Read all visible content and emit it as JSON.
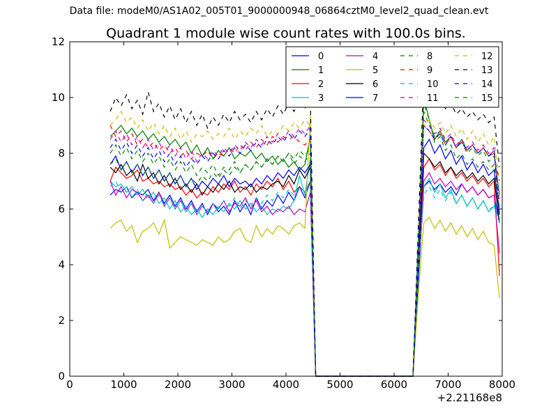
{
  "supertitle": "Data file: modeM0/AS1A02_005T01_9000000948_06864cztM0_level2_quad_clean.evt",
  "chart_data": {
    "type": "line",
    "title": "Quadrant 1 module wise count rates with 100.0s bins.",
    "xlabel": "",
    "ylabel": "",
    "x_offset_label": "+2.21168e8",
    "xlim": [
      0,
      8000
    ],
    "ylim": [
      0,
      12
    ],
    "xticks": [
      "0",
      "1000",
      "2000",
      "3000",
      "4000",
      "5000",
      "6000",
      "7000",
      "8000"
    ],
    "yticks": [
      "0",
      "2",
      "4",
      "6",
      "8",
      "10",
      "12"
    ],
    "legend_position": "top-right",
    "x_first_segment": {
      "start": 750,
      "step": 100,
      "count": 38
    },
    "x_second_segment": {
      "start": 6450,
      "step": 100,
      "count": 16
    },
    "series": [
      {
        "name": "0",
        "color": "#0000ff",
        "dash": "solid",
        "seg1": [
          6.5,
          6.7,
          6.6,
          6.8,
          6.4,
          6.6,
          6.5,
          6.7,
          6.3,
          6.6,
          6.2,
          6.5,
          6.1,
          6.4,
          6.0,
          6.3,
          5.9,
          6.2,
          5.8,
          6.2,
          5.9,
          6.1,
          5.8,
          6.3,
          5.9,
          6.2,
          5.8,
          6.4,
          6.0,
          6.3,
          6.1,
          6.5,
          6.2,
          6.6,
          6.3,
          6.8,
          6.4,
          7.0
        ],
        "seg2": [
          3.5,
          6.8,
          7.0,
          6.7,
          6.9,
          6.6,
          6.8,
          6.5,
          6.9,
          6.6,
          6.8,
          6.5,
          6.7,
          6.4,
          6.5,
          5.5
        ]
      },
      {
        "name": "1",
        "color": "#008000",
        "dash": "solid",
        "seg1": [
          8.6,
          8.8,
          9.0,
          8.7,
          8.9,
          8.6,
          8.8,
          8.5,
          8.7,
          8.4,
          8.6,
          8.3,
          8.5,
          8.2,
          8.4,
          8.0,
          8.3,
          7.9,
          8.2,
          7.8,
          8.1,
          7.9,
          8.2,
          7.8,
          8.0,
          7.9,
          8.1,
          7.8,
          8.0,
          7.7,
          7.9,
          7.6,
          7.8,
          7.5,
          7.7,
          7.4,
          7.6,
          8.6
        ],
        "seg2": [
          5.0,
          10.0,
          9.2,
          8.5,
          8.8,
          8.4,
          8.6,
          8.2,
          8.5,
          8.1,
          8.3,
          8.0,
          8.2,
          7.9,
          8.0,
          6.5
        ]
      },
      {
        "name": "2",
        "color": "#ff0000",
        "dash": "solid",
        "seg1": [
          7.0,
          7.5,
          7.3,
          7.1,
          7.2,
          7.4,
          7.0,
          7.1,
          6.9,
          7.0,
          6.8,
          6.9,
          6.7,
          6.8,
          6.5,
          6.7,
          6.4,
          6.6,
          6.5,
          6.8,
          6.6,
          6.9,
          6.7,
          7.0,
          6.6,
          6.8,
          6.5,
          6.9,
          6.7,
          7.0,
          6.8,
          7.1,
          6.7,
          7.0,
          6.6,
          6.8,
          6.6,
          7.0
        ],
        "seg2": [
          4.0,
          7.5,
          7.8,
          7.4,
          7.6,
          7.2,
          7.5,
          7.1,
          7.3,
          7.0,
          7.2,
          6.9,
          7.1,
          6.8,
          7.0,
          3.6
        ]
      },
      {
        "name": "3",
        "color": "#00bfbf",
        "dash": "solid",
        "seg1": [
          7.0,
          6.8,
          6.9,
          6.6,
          6.8,
          6.5,
          6.7,
          6.4,
          6.6,
          6.2,
          6.4,
          6.0,
          6.3,
          5.9,
          6.1,
          5.8,
          6.0,
          5.7,
          6.0,
          5.8,
          6.1,
          5.9,
          6.2,
          6.0,
          6.3,
          6.0,
          6.2,
          5.9,
          6.1,
          5.8,
          6.0,
          5.9,
          6.1,
          6.0,
          6.3,
          7.2,
          6.5,
          7.8
        ],
        "seg2": [
          4.0,
          6.8,
          7.1,
          6.6,
          6.9,
          6.4,
          6.7,
          6.2,
          6.5,
          6.1,
          6.4,
          6.0,
          6.3,
          5.9,
          6.1,
          5.6
        ]
      },
      {
        "name": "4",
        "color": "#bf00bf",
        "dash": "solid",
        "seg1": [
          7.0,
          6.5,
          6.8,
          6.4,
          6.7,
          6.6,
          6.3,
          6.5,
          6.2,
          6.6,
          6.1,
          6.4,
          6.0,
          6.3,
          5.9,
          6.2,
          5.8,
          6.1,
          5.9,
          6.2,
          6.0,
          6.3,
          5.9,
          6.2,
          6.1,
          6.4,
          6.0,
          6.3,
          5.9,
          6.1,
          5.8,
          6.0,
          5.9,
          6.1,
          5.8,
          6.0,
          5.9,
          6.6
        ],
        "seg2": [
          4.0,
          7.0,
          7.3,
          6.9,
          7.1,
          6.8,
          7.0,
          6.7,
          6.9,
          6.6,
          6.8,
          6.5,
          6.7,
          6.4,
          6.5,
          4.4
        ]
      },
      {
        "name": "5",
        "color": "#bfbf00",
        "dash": "solid",
        "seg1": [
          5.3,
          5.5,
          5.6,
          5.2,
          5.4,
          4.8,
          5.2,
          5.3,
          5.5,
          5.1,
          5.6,
          4.6,
          4.8,
          5.0,
          4.9,
          4.8,
          4.7,
          4.9,
          4.8,
          4.7,
          5.0,
          4.8,
          4.9,
          5.2,
          5.3,
          4.9,
          4.8,
          5.4,
          5.0,
          5.3,
          5.1,
          5.4,
          5.3,
          5.1,
          5.4,
          5.5,
          5.3,
          9.4
        ],
        "seg2": [
          3.0,
          5.5,
          5.7,
          5.3,
          5.6,
          5.2,
          5.5,
          5.1,
          5.4,
          5.0,
          5.3,
          4.9,
          5.2,
          4.8,
          4.7,
          2.8
        ]
      },
      {
        "name": "6",
        "color": "#000000",
        "dash": "solid",
        "seg1": [
          7.5,
          7.3,
          7.6,
          7.2,
          7.4,
          7.0,
          7.6,
          7.1,
          7.3,
          6.9,
          7.2,
          6.8,
          7.1,
          6.7,
          6.9,
          6.6,
          6.9,
          6.5,
          6.8,
          6.6,
          6.9,
          6.7,
          7.0,
          6.6,
          6.8,
          6.7,
          6.9,
          6.6,
          6.8,
          6.7,
          6.9,
          7.0,
          6.8,
          7.2,
          6.9,
          7.4,
          7.1,
          7.5
        ],
        "seg2": [
          4.0,
          8.0,
          7.8,
          7.5,
          7.7,
          7.3,
          7.5,
          7.2,
          7.4,
          7.1,
          7.3,
          7.0,
          7.2,
          6.9,
          7.1,
          5.5
        ]
      },
      {
        "name": "7",
        "color": "#0000ff",
        "dash": "solid",
        "seg1": [
          7.6,
          7.9,
          7.4,
          7.7,
          7.3,
          7.6,
          7.2,
          7.5,
          7.1,
          7.4,
          7.0,
          7.3,
          6.9,
          7.2,
          6.8,
          7.1,
          6.7,
          7.0,
          6.8,
          7.1,
          6.9,
          7.2,
          6.8,
          7.1,
          6.9,
          7.0,
          6.8,
          7.1,
          6.9,
          7.2,
          7.0,
          7.3,
          7.1,
          7.4,
          7.2,
          7.5,
          7.3,
          7.6
        ],
        "seg2": [
          4.5,
          8.2,
          8.5,
          8.0,
          8.3,
          7.8,
          8.1,
          7.6,
          7.9,
          7.4,
          7.7,
          7.3,
          7.6,
          7.2,
          7.4,
          5.8
        ]
      },
      {
        "name": "8",
        "color": "#008000",
        "dash": "dashed",
        "seg1": [
          8.0,
          8.3,
          7.9,
          8.2,
          7.8,
          8.1,
          7.7,
          8.0,
          7.6,
          7.9,
          7.5,
          7.8,
          7.4,
          7.7,
          7.3,
          7.6,
          7.2,
          7.5,
          7.3,
          7.6,
          7.2,
          7.5,
          7.4,
          7.7,
          7.3,
          7.6,
          7.4,
          7.7,
          7.5,
          7.8,
          7.6,
          7.9,
          7.7,
          8.0,
          7.6,
          7.9,
          7.7,
          8.0
        ],
        "seg2": [
          5.0,
          9.5,
          9.0,
          8.6,
          8.8,
          8.4,
          8.6,
          8.2,
          8.4,
          8.0,
          8.2,
          7.9,
          8.1,
          7.7,
          7.9,
          7.0
        ]
      },
      {
        "name": "9",
        "color": "#ff0000",
        "dash": "dashed",
        "seg1": [
          9.0,
          8.6,
          8.8,
          8.4,
          8.7,
          8.3,
          8.5,
          8.2,
          8.4,
          8.1,
          8.3,
          8.0,
          8.2,
          7.9,
          8.1,
          7.8,
          8.0,
          7.9,
          8.1,
          7.8,
          8.0,
          7.9,
          8.2,
          8.0,
          8.3,
          8.1,
          8.4,
          8.2,
          8.5,
          8.3,
          8.6,
          8.4,
          8.6,
          8.5,
          8.6,
          8.4,
          8.3,
          8.5
        ],
        "seg2": [
          4.5,
          9.0,
          8.8,
          8.5,
          8.7,
          8.3,
          8.6,
          8.2,
          8.4,
          8.1,
          8.3,
          8.0,
          8.2,
          7.9,
          8.1,
          6.0
        ]
      },
      {
        "name": "10",
        "color": "#00bfbf",
        "dash": "dashed",
        "seg1": [
          6.8,
          7.0,
          6.6,
          6.8,
          6.4,
          6.7,
          6.3,
          6.6,
          6.2,
          6.5,
          6.1,
          6.4,
          6.0,
          6.3,
          5.9,
          6.2,
          5.8,
          6.1,
          5.9,
          6.2,
          6.0,
          6.3,
          6.1,
          6.4,
          6.0,
          6.3,
          6.1,
          6.4,
          6.2,
          6.5,
          6.3,
          6.6,
          6.4,
          6.7,
          6.5,
          6.8,
          6.6,
          7.0
        ],
        "seg2": [
          4.0,
          6.5,
          6.8,
          6.4,
          6.7,
          6.3,
          6.6,
          6.2,
          6.5,
          6.1,
          6.4,
          6.0,
          6.3,
          5.9,
          6.2,
          5.5
        ]
      },
      {
        "name": "11",
        "color": "#bf00bf",
        "dash": "dashed",
        "seg1": [
          8.5,
          8.8,
          8.4,
          8.7,
          8.3,
          8.6,
          8.2,
          8.5,
          8.1,
          8.4,
          8.0,
          8.3,
          7.9,
          8.2,
          7.8,
          8.1,
          7.7,
          8.0,
          7.8,
          8.1,
          7.9,
          8.2,
          8.0,
          8.3,
          8.1,
          8.4,
          8.2,
          8.5,
          8.3,
          8.6,
          8.4,
          8.7,
          8.5,
          8.8,
          8.6,
          8.9,
          8.7,
          9.0
        ],
        "seg2": [
          5.0,
          9.2,
          9.0,
          8.7,
          8.9,
          8.5,
          8.7,
          8.3,
          8.5,
          8.2,
          8.4,
          8.1,
          8.3,
          8.0,
          8.2,
          6.2
        ]
      },
      {
        "name": "12",
        "color": "#bfbf00",
        "dash": "dashed",
        "seg1": [
          9.0,
          9.2,
          9.5,
          9.1,
          9.3,
          8.9,
          9.2,
          8.8,
          9.1,
          8.7,
          9.0,
          8.6,
          8.9,
          8.5,
          8.8,
          8.4,
          8.7,
          8.6,
          8.8,
          8.5,
          8.7,
          8.6,
          8.9,
          8.5,
          8.8,
          8.6,
          8.9,
          8.7,
          9.0,
          8.6,
          8.8,
          8.7,
          9.0,
          8.8,
          9.1,
          8.9,
          9.2,
          9.0
        ],
        "seg2": [
          5.0,
          9.0,
          9.2,
          8.9,
          9.1,
          8.7,
          9.0,
          8.6,
          8.9,
          8.5,
          8.8,
          8.4,
          8.7,
          8.3,
          8.6,
          7.0
        ]
      },
      {
        "name": "13",
        "color": "#000000",
        "dash": "dashed",
        "seg1": [
          9.5,
          10.0,
          9.7,
          10.1,
          9.6,
          9.9,
          9.4,
          10.2,
          9.5,
          9.8,
          9.3,
          9.7,
          9.2,
          9.6,
          9.1,
          9.5,
          9.0,
          9.4,
          8.9,
          9.3,
          9.0,
          9.4,
          9.1,
          9.5,
          9.2,
          9.4,
          9.1,
          9.5,
          9.2,
          9.6,
          9.3,
          9.7,
          9.4,
          9.8,
          9.5,
          9.9,
          9.6,
          10.0
        ],
        "seg2": [
          5.5,
          10.8,
          10.2,
          9.8,
          10.0,
          9.6,
          9.8,
          9.4,
          9.6,
          9.3,
          9.5,
          9.2,
          9.4,
          9.1,
          9.3,
          7.5
        ]
      },
      {
        "name": "14",
        "color": "#0000ff",
        "dash": "dashed",
        "seg1": [
          8.2,
          8.5,
          8.1,
          8.4,
          8.0,
          8.3,
          7.9,
          8.2,
          7.8,
          8.1,
          7.7,
          8.0,
          7.6,
          7.9,
          7.5,
          7.8,
          7.6,
          7.9,
          7.7,
          8.0,
          7.8,
          8.1,
          7.9,
          8.2,
          8.0,
          8.3,
          8.1,
          8.4,
          8.2,
          8.5,
          8.3,
          8.6,
          8.4,
          8.7,
          8.5,
          8.8,
          8.6,
          8.9
        ],
        "seg2": [
          5.0,
          9.0,
          8.8,
          8.5,
          8.7,
          8.3,
          8.6,
          8.2,
          8.4,
          8.1,
          8.3,
          8.0,
          8.2,
          7.9,
          8.1,
          5.8
        ]
      },
      {
        "name": "15",
        "color": "#008000",
        "dash": "dashed",
        "seg1": [
          7.6,
          7.8,
          7.4,
          7.7,
          7.3,
          7.6,
          7.2,
          7.5,
          7.1,
          7.4,
          7.0,
          7.3,
          6.9,
          7.2,
          6.8,
          7.1,
          6.9,
          7.2,
          7.0,
          7.3,
          7.1,
          7.4,
          7.2,
          7.5,
          7.3,
          7.6,
          7.4,
          7.7,
          7.5,
          7.8,
          7.6,
          7.9,
          7.7,
          8.0,
          7.8,
          8.1,
          7.9,
          8.2
        ],
        "seg2": [
          4.5,
          9.8,
          9.2,
          8.4,
          8.6,
          8.1,
          8.3,
          7.8,
          8.0,
          7.6,
          7.8,
          7.5,
          7.7,
          7.4,
          7.6,
          6.0
        ]
      }
    ]
  }
}
